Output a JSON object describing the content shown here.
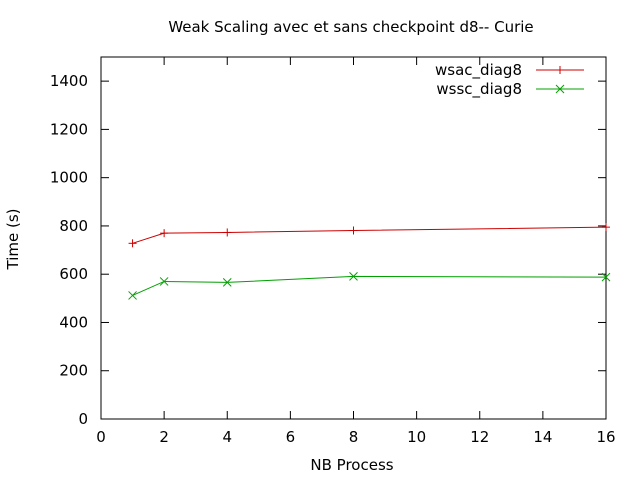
{
  "chart_data": {
    "type": "line",
    "title": "Weak Scaling avec et sans checkpoint d8-- Curie",
    "xlabel": "NB Process",
    "ylabel": "Time (s)",
    "xlim": [
      0,
      16
    ],
    "ylim": [
      0,
      1500
    ],
    "xticks": [
      0,
      2,
      4,
      6,
      8,
      10,
      12,
      14,
      16
    ],
    "yticks": [
      0,
      200,
      400,
      600,
      800,
      1000,
      1200,
      1400
    ],
    "grid": false,
    "legend_position": "top-right",
    "series": [
      {
        "name": "wsac_diag8",
        "color": "#cc0000",
        "marker": "plus",
        "x": [
          1,
          2,
          4,
          8,
          16
        ],
        "y": [
          728,
          770,
          773,
          781,
          795
        ]
      },
      {
        "name": "wssc_diag8",
        "color": "#00a000",
        "marker": "cross",
        "x": [
          1,
          2,
          4,
          8,
          16
        ],
        "y": [
          512,
          570,
          566,
          591,
          588
        ]
      }
    ]
  }
}
